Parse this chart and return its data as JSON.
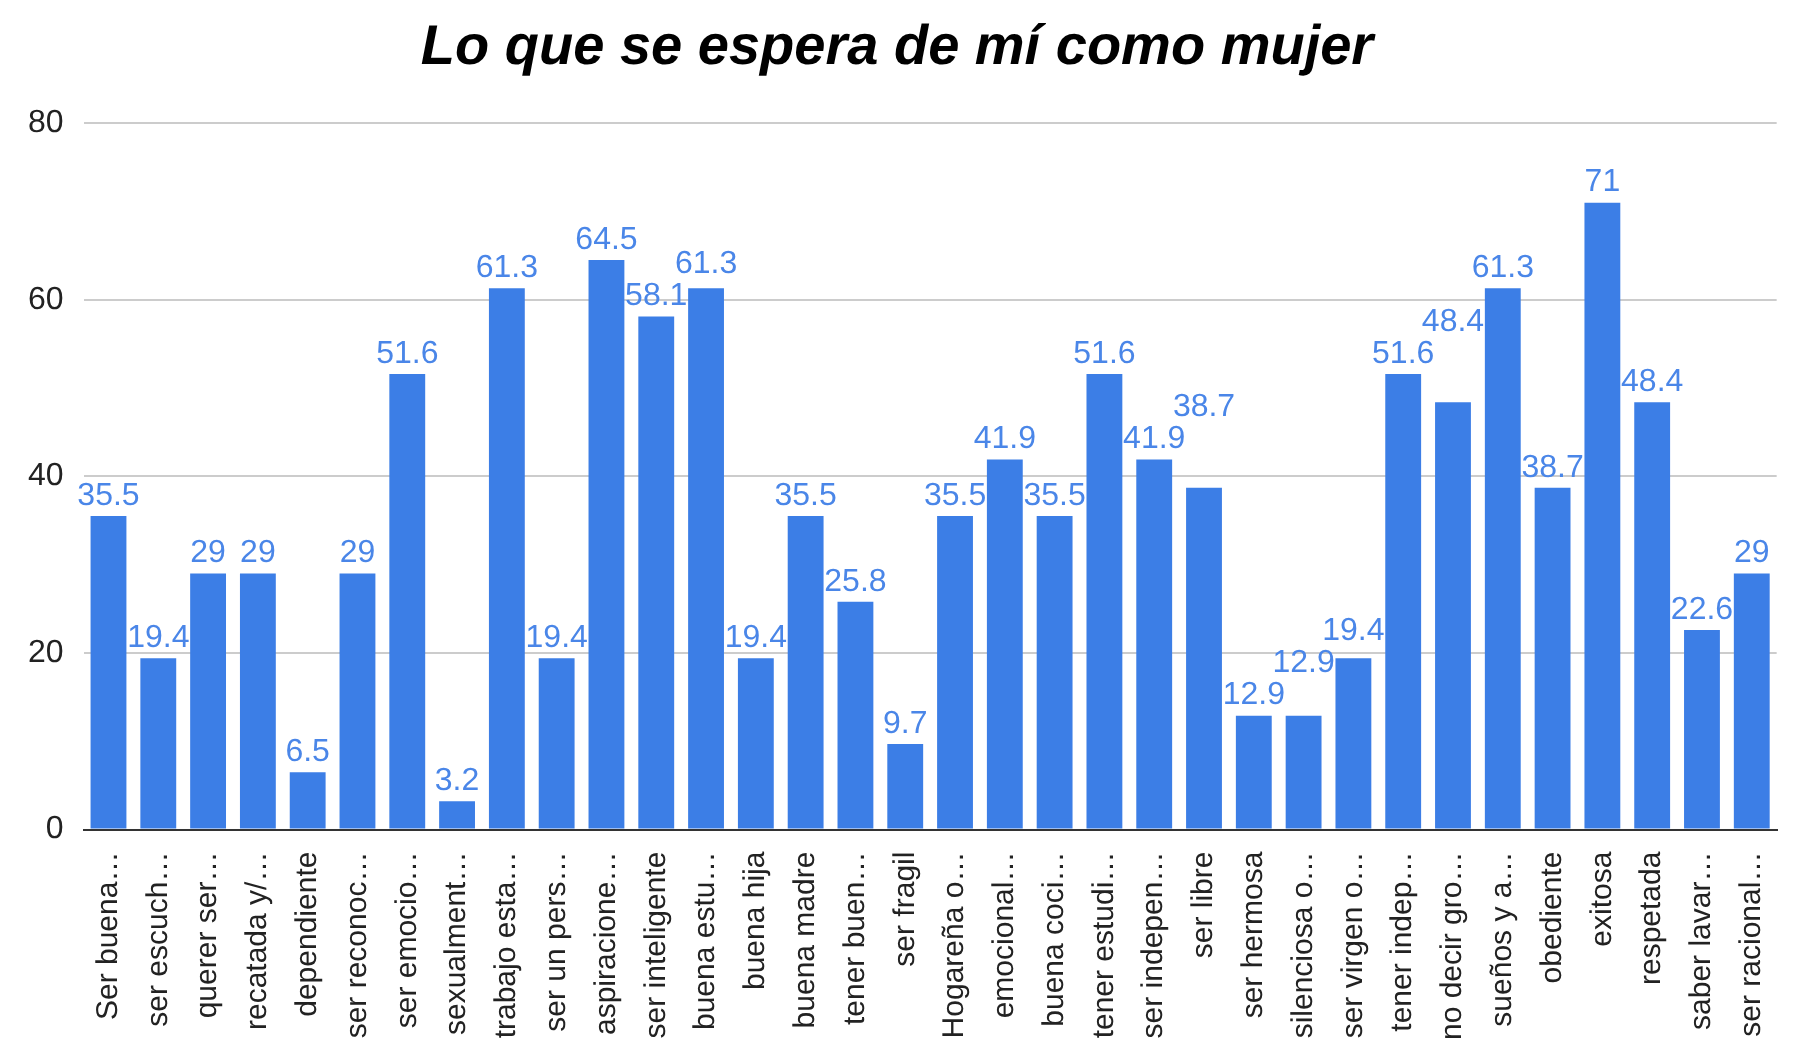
{
  "chart_data": {
    "type": "bar",
    "title": "Lo que se espera de mí como mujer",
    "categories": [
      "Ser buena…",
      "ser escuch…",
      "querer ser…",
      "recatada y/…",
      "dependiente",
      "ser reconoc…",
      "ser emocio…",
      "sexualment…",
      "trabajo esta…",
      "ser un pers…",
      "aspiracione…",
      "ser inteligente",
      "buena estu…",
      "buena hija",
      "buena madre",
      "tener buen…",
      "ser fragil",
      "Hogareña o…",
      "emocional…",
      "buena coci…",
      "tener estudi…",
      "ser indepen…",
      "ser libre",
      "ser hermosa",
      "silenciosa o…",
      "ser virgen o…",
      "tener indep…",
      "no decir gro…",
      "sueños y a…",
      "obediente",
      "exitosa",
      "respetada",
      "saber lavar…",
      "ser racional…"
    ],
    "values": [
      35.5,
      19.4,
      29,
      29,
      6.5,
      29,
      51.6,
      3.2,
      61.3,
      19.4,
      64.5,
      58.1,
      61.3,
      19.4,
      35.5,
      25.8,
      9.7,
      35.5,
      41.9,
      35.5,
      51.6,
      41.9,
      38.7,
      12.9,
      12.9,
      19.4,
      51.6,
      48.4,
      61.3,
      38.7,
      71,
      48.4,
      22.6,
      29
    ],
    "color": "#3c7ee6",
    "ylim": [
      0,
      80
    ],
    "yticks": [
      0,
      20,
      40,
      60,
      80
    ],
    "grid": "y",
    "data_labels": true,
    "legend": false
  }
}
